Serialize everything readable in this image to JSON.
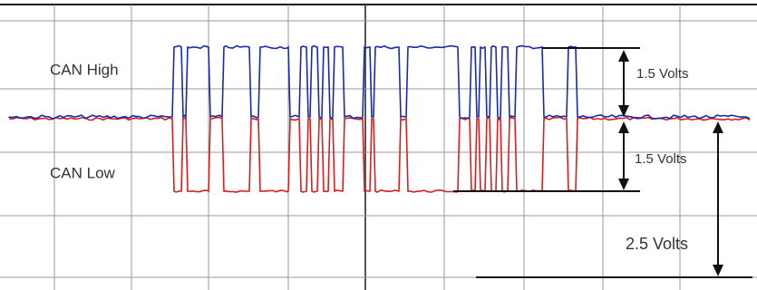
{
  "labels": {
    "can_high": "CAN High",
    "can_low": "CAN Low",
    "high_swing": "1.5 Volts",
    "low_swing": "1.5 Volts",
    "recessive_level": "2.5 Volts"
  }
}
